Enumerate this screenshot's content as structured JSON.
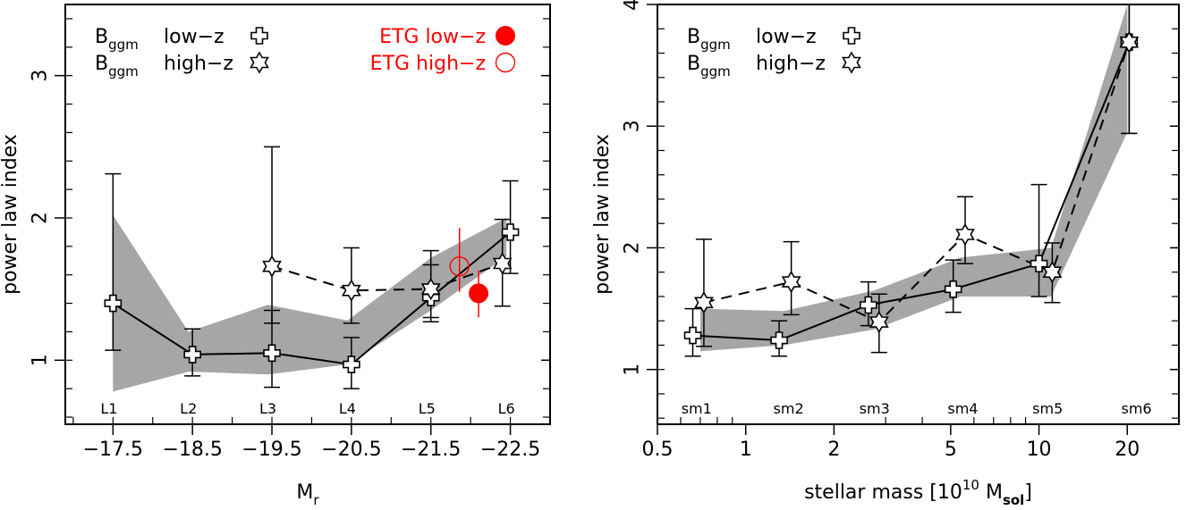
{
  "chart_data": [
    {
      "type": "line",
      "xlabel": "M",
      "xlabel_sub": "r",
      "ylabel": "power law index",
      "xlim": [
        -16.9,
        -23.0
      ],
      "ylim": [
        0.55,
        3.5
      ],
      "x_reversed": true,
      "x_scale": "linear",
      "xticks": [
        -17.5,
        -18.5,
        -19.5,
        -20.5,
        -21.5,
        -22.5
      ],
      "xtick_labels": [
        "−17.5",
        "−18.5",
        "−19.5",
        "−20.5",
        "−21.5",
        "−22.5"
      ],
      "yticks": [
        1,
        2,
        3
      ],
      "ytick_labels": [
        "1",
        "2",
        "3"
      ],
      "bin_labels": [
        {
          "x": -17.45,
          "label": "L1"
        },
        {
          "x": -18.45,
          "label": "L2"
        },
        {
          "x": -19.45,
          "label": "L3"
        },
        {
          "x": -20.45,
          "label": "L4"
        },
        {
          "x": -21.45,
          "label": "L5"
        },
        {
          "x": -22.45,
          "label": "L6"
        }
      ],
      "band": {
        "x": [
          -17.5,
          -18.45,
          -19.45,
          -20.45,
          -21.5,
          -22.45
        ],
        "lower": [
          0.78,
          0.92,
          0.9,
          0.97,
          1.35,
          1.73
        ],
        "upper": [
          2.02,
          1.2,
          1.39,
          1.28,
          1.72,
          2.0
        ]
      },
      "series": [
        {
          "legend_main": "B",
          "legend_sub": "ggm",
          "legend_rest": "low−z",
          "marker": "cross",
          "line": "solid",
          "color": "#000000",
          "points": [
            {
              "x": -17.5,
              "y": 1.4,
              "lo": 1.07,
              "hi": 2.31
            },
            {
              "x": -18.5,
              "y": 1.04,
              "lo": 0.89,
              "hi": 1.22
            },
            {
              "x": -19.5,
              "y": 1.05,
              "lo": 0.81,
              "hi": 1.35
            },
            {
              "x": -20.5,
              "y": 0.97,
              "lo": 0.8,
              "hi": 1.16
            },
            {
              "x": -21.5,
              "y": 1.44,
              "lo": 1.27,
              "hi": 1.67
            },
            {
              "x": -22.5,
              "y": 1.9,
              "lo": 1.61,
              "hi": 2.26
            }
          ]
        },
        {
          "legend_main": "B",
          "legend_sub": "ggm",
          "legend_rest": "high−z",
          "marker": "star",
          "line": "dashed",
          "color": "#000000",
          "points": [
            {
              "x": -19.5,
              "y": 1.66,
              "lo": 1.26,
              "hi": 2.5
            },
            {
              "x": -20.5,
              "y": 1.49,
              "lo": 1.26,
              "hi": 1.79
            },
            {
              "x": -21.5,
              "y": 1.5,
              "lo": 1.3,
              "hi": 1.77
            },
            {
              "x": -22.4,
              "y": 1.68,
              "lo": 1.38,
              "hi": 1.99
            }
          ]
        },
        {
          "legend_main": "ETG low−z",
          "legend_sub": "",
          "legend_rest": "",
          "marker": "filled-circle",
          "line": "none",
          "color": "#ff0000",
          "points": [
            {
              "x": -22.1,
              "y": 1.47,
              "lo": 1.3,
              "hi": 1.63
            }
          ]
        },
        {
          "legend_main": "ETG high−z",
          "legend_sub": "",
          "legend_rest": "",
          "marker": "open-circle",
          "line": "none",
          "color": "#ff0000",
          "points": [
            {
              "x": -21.86,
              "y": 1.66,
              "lo": 1.48,
              "hi": 1.93
            }
          ]
        }
      ]
    },
    {
      "type": "line",
      "xlabel": "stellar mass [10",
      "xlabel_sup": "10",
      "xlabel_unit": " M",
      "xlabel_sub": "sol",
      "xlabel_end": "]",
      "ylabel": "power law index",
      "xlim": [
        0.5,
        30.0
      ],
      "ylim": [
        0.55,
        4.0
      ],
      "x_scale": "log",
      "xticks": [
        0.5,
        1,
        2,
        5,
        10,
        20
      ],
      "xtick_labels": [
        "0.5",
        "1",
        "2",
        "5",
        "10",
        "20"
      ],
      "yticks": [
        1,
        2,
        3,
        4
      ],
      "ytick_labels": [
        "1",
        "2",
        "3",
        "4"
      ],
      "bin_labels": [
        {
          "x": 0.68,
          "label": "sm1"
        },
        {
          "x": 1.4,
          "label": "sm2"
        },
        {
          "x": 2.75,
          "label": "sm3"
        },
        {
          "x": 5.5,
          "label": "sm4"
        },
        {
          "x": 10.7,
          "label": "sm5"
        },
        {
          "x": 21.5,
          "label": "sm6"
        }
      ],
      "band": {
        "x": [
          0.7,
          1.35,
          2.75,
          5.4,
          11.0,
          20.0
        ],
        "lower": [
          1.15,
          1.2,
          1.33,
          1.6,
          1.6,
          2.95
        ],
        "upper": [
          1.5,
          1.48,
          1.65,
          1.92,
          2.0,
          4.0
        ]
      },
      "series": [
        {
          "legend_main": "B",
          "legend_sub": "ggm",
          "legend_rest": "low−z",
          "marker": "cross",
          "line": "solid",
          "color": "#000000",
          "points": [
            {
              "x": 0.66,
              "y": 1.28,
              "lo": 1.11,
              "hi": 1.5
            },
            {
              "x": 1.3,
              "y": 1.24,
              "lo": 1.11,
              "hi": 1.4
            },
            {
              "x": 2.62,
              "y": 1.53,
              "lo": 1.36,
              "hi": 1.72
            },
            {
              "x": 5.1,
              "y": 1.66,
              "lo": 1.47,
              "hi": 1.9
            },
            {
              "x": 10.0,
              "y": 1.87,
              "lo": 1.6,
              "hi": 2.52
            },
            {
              "x": 20.3,
              "y": 3.69,
              "lo": 2.94,
              "hi": 4.0
            }
          ]
        },
        {
          "legend_main": "B",
          "legend_sub": "ggm",
          "legend_rest": "high−z",
          "marker": "star",
          "line": "dashed",
          "color": "#000000",
          "points": [
            {
              "x": 0.72,
              "y": 1.55,
              "lo": 1.19,
              "hi": 2.07
            },
            {
              "x": 1.43,
              "y": 1.72,
              "lo": 1.45,
              "hi": 2.05
            },
            {
              "x": 2.85,
              "y": 1.39,
              "lo": 1.14,
              "hi": 1.62
            },
            {
              "x": 5.6,
              "y": 2.11,
              "lo": 1.87,
              "hi": 2.42
            },
            {
              "x": 11.1,
              "y": 1.8,
              "lo": 1.55,
              "hi": 2.04
            },
            {
              "x": 20.3,
              "y": 3.69,
              "lo": 2.94,
              "hi": 4.0
            }
          ]
        }
      ]
    }
  ]
}
